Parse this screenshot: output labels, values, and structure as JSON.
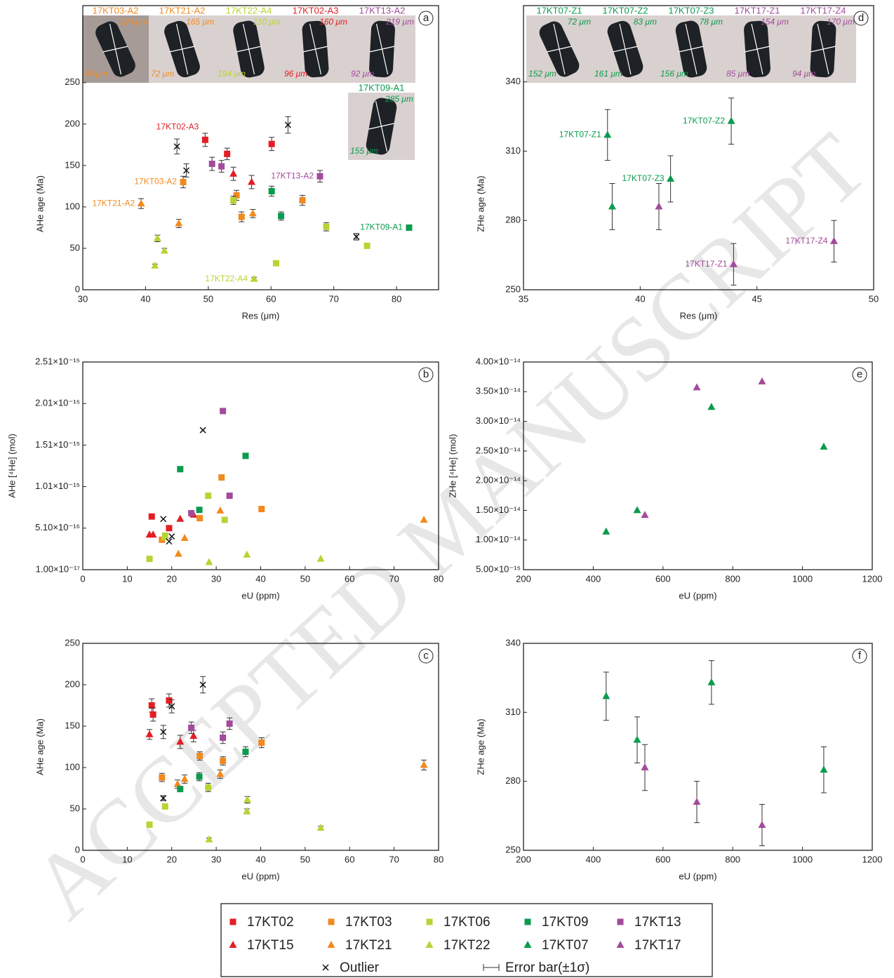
{
  "watermark": "ACCEPTED MANUSCRIPT",
  "legend": [
    {
      "name": "17KT02",
      "color": "#e31e24",
      "marker": "square"
    },
    {
      "name": "17KT03",
      "color": "#f18a1f",
      "marker": "square"
    },
    {
      "name": "17KT06",
      "color": "#b7d433",
      "marker": "square"
    },
    {
      "name": "17KT09",
      "color": "#0b9b4f",
      "marker": "square"
    },
    {
      "name": "17KT13",
      "color": "#a24b9c",
      "marker": "square"
    },
    {
      "name": "17KT15",
      "color": "#e31e24",
      "marker": "triangle"
    },
    {
      "name": "17KT21",
      "color": "#f18a1f",
      "marker": "triangle"
    },
    {
      "name": "17KT22",
      "color": "#b7d433",
      "marker": "triangle"
    },
    {
      "name": "17KT07",
      "color": "#0b9b4f",
      "marker": "triangle"
    },
    {
      "name": "17KT17",
      "color": "#a24b9c",
      "marker": "triangle"
    },
    {
      "name": "Outlier",
      "color": "#111111",
      "marker": "x"
    },
    {
      "name": "Error bar(±1σ)",
      "color": "#333333",
      "marker": "errorbar"
    }
  ],
  "chart_data": [
    {
      "type": "scatter",
      "panel": "a",
      "xlabel": "Res (μm)",
      "ylabel": "AHe age (Ma)",
      "xlim": [
        30,
        86.7
      ],
      "xticks": [
        30,
        40,
        50,
        60,
        70,
        80
      ],
      "ylim": [
        0,
        343
      ],
      "yticks": [
        0,
        50,
        100,
        150,
        200,
        250
      ],
      "insets": [
        {
          "title": "17KT03-A2",
          "color": "#f18a1f",
          "dims": [
            "224 μm",
            "84 μm"
          ]
        },
        {
          "title": "17KT21-A2",
          "color": "#f18a1f",
          "dims": [
            "165 μm",
            "72 μm"
          ]
        },
        {
          "title": "17KT22-A4",
          "color": "#b7d433",
          "dims": [
            "110 μm",
            "194 μm"
          ]
        },
        {
          "title": "17KT02-A3",
          "color": "#e31e24",
          "dims": [
            "160 μm",
            "96 μm"
          ]
        },
        {
          "title": "17KT13-A2",
          "color": "#a24b9c",
          "dims": [
            "219 μm",
            "92 μm"
          ]
        },
        {
          "title": "17KT09-A1",
          "color": "#0b9b4f",
          "dims": [
            "285 μm",
            "155 μm"
          ]
        }
      ],
      "series": [
        {
          "name": "17KT02",
          "x": [
            49.5,
            53,
            60.1
          ],
          "y": [
            181,
            164,
            176
          ],
          "err": [
            8,
            7,
            8
          ],
          "point_labels": [
            "17KT02-A3",
            null,
            null
          ]
        },
        {
          "name": "17KT15",
          "x": [
            54,
            56.9
          ],
          "y": [
            140,
            130
          ],
          "err": [
            8,
            8
          ]
        },
        {
          "name": "17KT03",
          "x": [
            46,
            54.5,
            55.3,
            65
          ],
          "y": [
            130,
            114,
            88,
            108
          ],
          "err": [
            7,
            6,
            6,
            6
          ],
          "point_labels": [
            "17KT03-A2",
            null,
            null,
            null
          ]
        },
        {
          "name": "17KT21",
          "x": [
            39.3,
            45.3,
            57.1
          ],
          "y": [
            104,
            80,
            92
          ],
          "err": [
            6,
            5,
            5
          ],
          "point_labels": [
            "17KT21-A2",
            null,
            null
          ]
        },
        {
          "name": "17KT06",
          "x": [
            54,
            60.8,
            68.8,
            75.3
          ],
          "y": [
            108,
            32,
            76,
            53
          ],
          "err": [
            5,
            2,
            5,
            3
          ]
        },
        {
          "name": "17KT22",
          "x": [
            41.9,
            43,
            41.5,
            57.3
          ],
          "y": [
            62,
            47,
            29,
            13
          ],
          "err": [
            4,
            3,
            2,
            2
          ],
          "point_labels": [
            null,
            null,
            null,
            "17KT22-A4"
          ]
        },
        {
          "name": "17KT09",
          "x": [
            60.1,
            61.6,
            82
          ],
          "y": [
            119,
            89,
            75
          ],
          "err": [
            6,
            5,
            3
          ],
          "point_labels": [
            null,
            null,
            "17KT09-A1"
          ]
        },
        {
          "name": "17KT13",
          "x": [
            50.6,
            52.1,
            67.8
          ],
          "y": [
            152,
            149,
            137
          ],
          "err": [
            8,
            7,
            7
          ],
          "point_labels": [
            null,
            null,
            "17KT13-A2"
          ]
        },
        {
          "name": "Outlier",
          "x": [
            45,
            46.5,
            62.7,
            73.6
          ],
          "y": [
            173,
            144,
            199,
            64
          ],
          "err": [
            9,
            8,
            10,
            4
          ]
        }
      ]
    },
    {
      "type": "scatter",
      "panel": "b",
      "xlabel": "eU (ppm)",
      "ylabel": "AHe [⁴He] (mol)",
      "xlim": [
        0,
        80
      ],
      "xticks": [
        0,
        10,
        20,
        30,
        40,
        50,
        60,
        70,
        80
      ],
      "ylim": [
        1e-17,
        2.51e-15
      ],
      "yticks": [
        {
          "value": 1e-17,
          "label": "1.00×10⁻¹⁷"
        },
        {
          "value": 5.1e-16,
          "label": "5.10×10⁻¹⁶"
        },
        {
          "value": 1.01e-15,
          "label": "1.01×10⁻¹⁵"
        },
        {
          "value": 1.51e-15,
          "label": "1.51×10⁻¹⁵"
        },
        {
          "value": 2.01e-15,
          "label": "2.01×10⁻¹⁵"
        },
        {
          "value": 2.51e-15,
          "label": "2.51×10⁻¹⁵"
        }
      ],
      "series": [
        {
          "name": "17KT02",
          "x": [
            15.5,
            19.4
          ],
          "y": [
            6.5e-16,
            5.1e-16
          ]
        },
        {
          "name": "17KT15",
          "x": [
            15,
            15.8,
            21.9,
            24.9
          ],
          "y": [
            4.3e-16,
            4.3e-16,
            6.2e-16,
            6.7e-16
          ]
        },
        {
          "name": "17KT03",
          "x": [
            17.8,
            26.3,
            31.2,
            40.2
          ],
          "y": [
            3.7e-16,
            6.3e-16,
            1.12e-15,
            7.4e-16
          ]
        },
        {
          "name": "17KT21",
          "x": [
            21.5,
            22.9,
            30.9,
            76.7
          ],
          "y": [
            2e-16,
            3.9e-16,
            7.2e-16,
            6.1e-16
          ]
        },
        {
          "name": "17KT06",
          "x": [
            15,
            18.5,
            28.2,
            31.9
          ],
          "y": [
            1.4e-16,
            4.2e-16,
            9e-16,
            6.1e-16
          ]
        },
        {
          "name": "17KT22",
          "x": [
            18.3,
            28.4,
            36.9,
            53.5
          ],
          "y": [
            4e-16,
            1e-16,
            1.9e-16,
            1.4e-16
          ]
        },
        {
          "name": "17KT09",
          "x": [
            21.9,
            26.2,
            36.6
          ],
          "y": [
            1.22e-15,
            7.3e-16,
            1.38e-15
          ]
        },
        {
          "name": "17KT13",
          "x": [
            24.4,
            31.5,
            33
          ],
          "y": [
            6.9e-16,
            1.92e-15,
            9e-16
          ]
        },
        {
          "name": "Outlier",
          "x": [
            27,
            18.1,
            20,
            19.4
          ],
          "y": [
            1.69e-15,
            6.2e-16,
            4.1e-16,
            3.5e-16
          ]
        }
      ]
    },
    {
      "type": "scatter",
      "panel": "c",
      "xlabel": "eU (ppm)",
      "ylabel": "AHe age (Ma)",
      "xlim": [
        0,
        80
      ],
      "xticks": [
        0,
        10,
        20,
        30,
        40,
        50,
        60,
        70,
        80
      ],
      "ylim": [
        0,
        250
      ],
      "yticks": [
        0,
        50,
        100,
        150,
        200,
        250
      ],
      "series": [
        {
          "name": "17KT02",
          "x": [
            15.5,
            15.8,
            19.4
          ],
          "y": [
            175,
            164,
            181
          ],
          "err": [
            8,
            8,
            8
          ]
        },
        {
          "name": "17KT15",
          "x": [
            15,
            21.9,
            24.9
          ],
          "y": [
            140,
            131,
            138
          ],
          "err": [
            6,
            8,
            7
          ]
        },
        {
          "name": "17KT03",
          "x": [
            17.8,
            26.3,
            31.5,
            40.2
          ],
          "y": [
            88,
            114,
            108,
            130
          ],
          "err": [
            5,
            5,
            5,
            6
          ]
        },
        {
          "name": "17KT21",
          "x": [
            21.3,
            22.9,
            30.9,
            76.7
          ],
          "y": [
            80,
            86,
            92,
            103
          ],
          "err": [
            5,
            5,
            5,
            6
          ]
        },
        {
          "name": "17KT06",
          "x": [
            15,
            18.5,
            28.2
          ],
          "y": [
            31,
            53,
            76
          ],
          "err": [
            2,
            3,
            5
          ]
        },
        {
          "name": "17KT22",
          "x": [
            37,
            36.9,
            53.5,
            28.4
          ],
          "y": [
            61,
            47,
            27,
            13
          ],
          "err": [
            4,
            3,
            2,
            2
          ]
        },
        {
          "name": "17KT09",
          "x": [
            21.9,
            26.2,
            36.6
          ],
          "y": [
            74,
            89,
            119
          ],
          "err": [
            3,
            5,
            6
          ]
        },
        {
          "name": "17KT13",
          "x": [
            24.4,
            31.5,
            33
          ],
          "y": [
            148,
            136,
            153
          ],
          "err": [
            7,
            7,
            7
          ]
        },
        {
          "name": "Outlier",
          "x": [
            27,
            18.1,
            20,
            18.1
          ],
          "y": [
            200,
            143,
            174,
            63
          ],
          "err": [
            10,
            8,
            8,
            3
          ]
        }
      ]
    },
    {
      "type": "scatter",
      "panel": "d",
      "xlabel": "Res (μm)",
      "ylabel": "ZHe age (Ma)",
      "xlim": [
        35,
        50
      ],
      "xticks": [
        35,
        40,
        45,
        50
      ],
      "ylim": [
        250,
        373
      ],
      "yticks": [
        250,
        280,
        310,
        340
      ],
      "insets": [
        {
          "title": "17KT07-Z1",
          "color": "#0b9b4f",
          "dims": [
            "72 μm",
            "152 μm"
          ]
        },
        {
          "title": "17KT07-Z2",
          "color": "#0b9b4f",
          "dims": [
            "83 μm",
            "161 μm"
          ]
        },
        {
          "title": "17KT07-Z3",
          "color": "#0b9b4f",
          "dims": [
            "78 μm",
            "156 μm"
          ]
        },
        {
          "title": "17KT17-Z1",
          "color": "#a24b9c",
          "dims": [
            "154 μm",
            "85 μm"
          ]
        },
        {
          "title": "17KT17-Z4",
          "color": "#a24b9c",
          "dims": [
            "170 μm",
            "94 μm"
          ]
        }
      ],
      "series": [
        {
          "name": "17KT07",
          "x": [
            38.6,
            38.8,
            41.3,
            43.9
          ],
          "y": [
            317,
            286,
            298,
            323
          ],
          "err": [
            11,
            10,
            10,
            10
          ],
          "point_labels": [
            "17KT07-Z1",
            null,
            "17KT07-Z3",
            "17KT07-Z2"
          ]
        },
        {
          "name": "17KT17",
          "x": [
            40.8,
            44,
            48.3
          ],
          "y": [
            286,
            261,
            271
          ],
          "err": [
            10,
            9,
            9
          ],
          "point_labels": [
            null,
            "17KT17-Z1",
            "17KT17-Z4"
          ]
        }
      ]
    },
    {
      "type": "scatter",
      "panel": "e",
      "xlabel": "eU (ppm)",
      "ylabel": "ZHe [⁴He] (mol)",
      "xlim": [
        200,
        1200
      ],
      "xticks": [
        200,
        400,
        600,
        800,
        1000,
        1200
      ],
      "ylim": [
        5e-15,
        4e-14
      ],
      "yticks": [
        {
          "value": 5e-15,
          "label": "5.00×10⁻¹⁵"
        },
        {
          "value": 1e-14,
          "label": "1.00×10⁻¹⁴"
        },
        {
          "value": 1.5e-14,
          "label": "1.50×10⁻¹⁴"
        },
        {
          "value": 2e-14,
          "label": "2.00×10⁻¹⁴"
        },
        {
          "value": 2.5e-14,
          "label": "2.50×10⁻¹⁴"
        },
        {
          "value": 3e-14,
          "label": "3.00×10⁻¹⁴"
        },
        {
          "value": 3.5e-14,
          "label": "3.50×10⁻¹⁴"
        },
        {
          "value": 4e-14,
          "label": "4.00×10⁻¹⁴"
        }
      ],
      "series": [
        {
          "name": "17KT07",
          "x": [
            437,
            526,
            739,
            1061
          ],
          "y": [
            1.14e-14,
            1.5e-14,
            3.24e-14,
            2.57e-14
          ]
        },
        {
          "name": "17KT17",
          "x": [
            548,
            697,
            884
          ],
          "y": [
            1.42e-14,
            3.57e-14,
            3.67e-14
          ]
        }
      ]
    },
    {
      "type": "scatter",
      "panel": "f",
      "xlabel": "eU (ppm)",
      "ylabel": "ZHe age (Ma)",
      "xlim": [
        200,
        1200
      ],
      "xticks": [
        200,
        400,
        600,
        800,
        1000,
        1200
      ],
      "ylim": [
        250,
        340
      ],
      "yticks": [
        250,
        280,
        310,
        340
      ],
      "series": [
        {
          "name": "17KT07",
          "x": [
            437,
            526,
            739,
            1061
          ],
          "y": [
            317,
            298,
            323,
            285
          ],
          "err": [
            10.5,
            10,
            9.5,
            10
          ]
        },
        {
          "name": "17KT17",
          "x": [
            548,
            697,
            884
          ],
          "y": [
            286,
            271,
            261
          ],
          "err": [
            10,
            9,
            9
          ]
        }
      ]
    }
  ]
}
